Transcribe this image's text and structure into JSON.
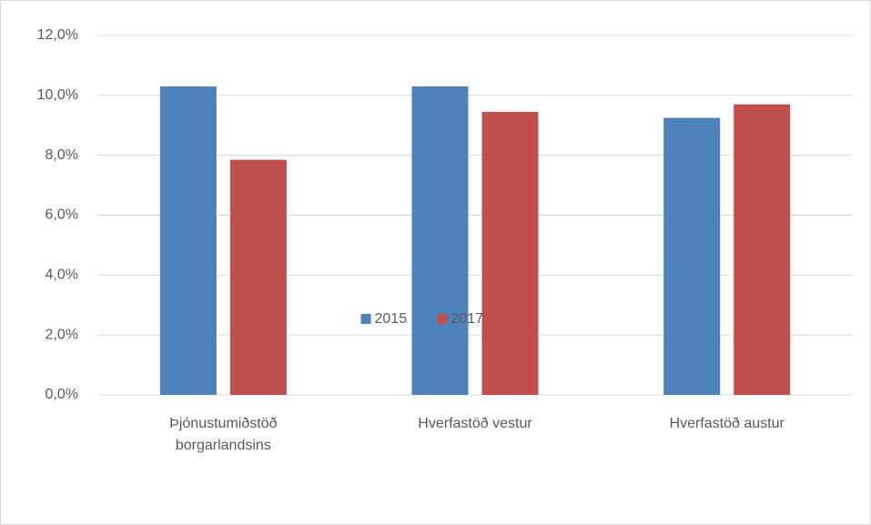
{
  "chart_data": {
    "type": "bar",
    "categories": [
      "Þjónustumiðstöð borgarlandsins",
      "Hverfastöð vestur",
      "Hverfastöð austur"
    ],
    "series": [
      {
        "name": "2015",
        "color": "#4f81bd",
        "values": [
          10.3,
          10.3,
          9.25
        ]
      },
      {
        "name": "2017",
        "color": "#c0504d",
        "values": [
          7.85,
          9.45,
          9.7
        ]
      }
    ],
    "ylim": [
      0,
      12
    ],
    "yticks": [
      {
        "value": 0,
        "label": "0,0%"
      },
      {
        "value": 2,
        "label": "2,0%"
      },
      {
        "value": 4,
        "label": "4,0%"
      },
      {
        "value": 6,
        "label": "6,0%"
      },
      {
        "value": 8,
        "label": "8,0%"
      },
      {
        "value": 10,
        "label": "10,0%"
      },
      {
        "value": 12,
        "label": "12,0%"
      }
    ],
    "grid": true,
    "legend": "bottom"
  }
}
